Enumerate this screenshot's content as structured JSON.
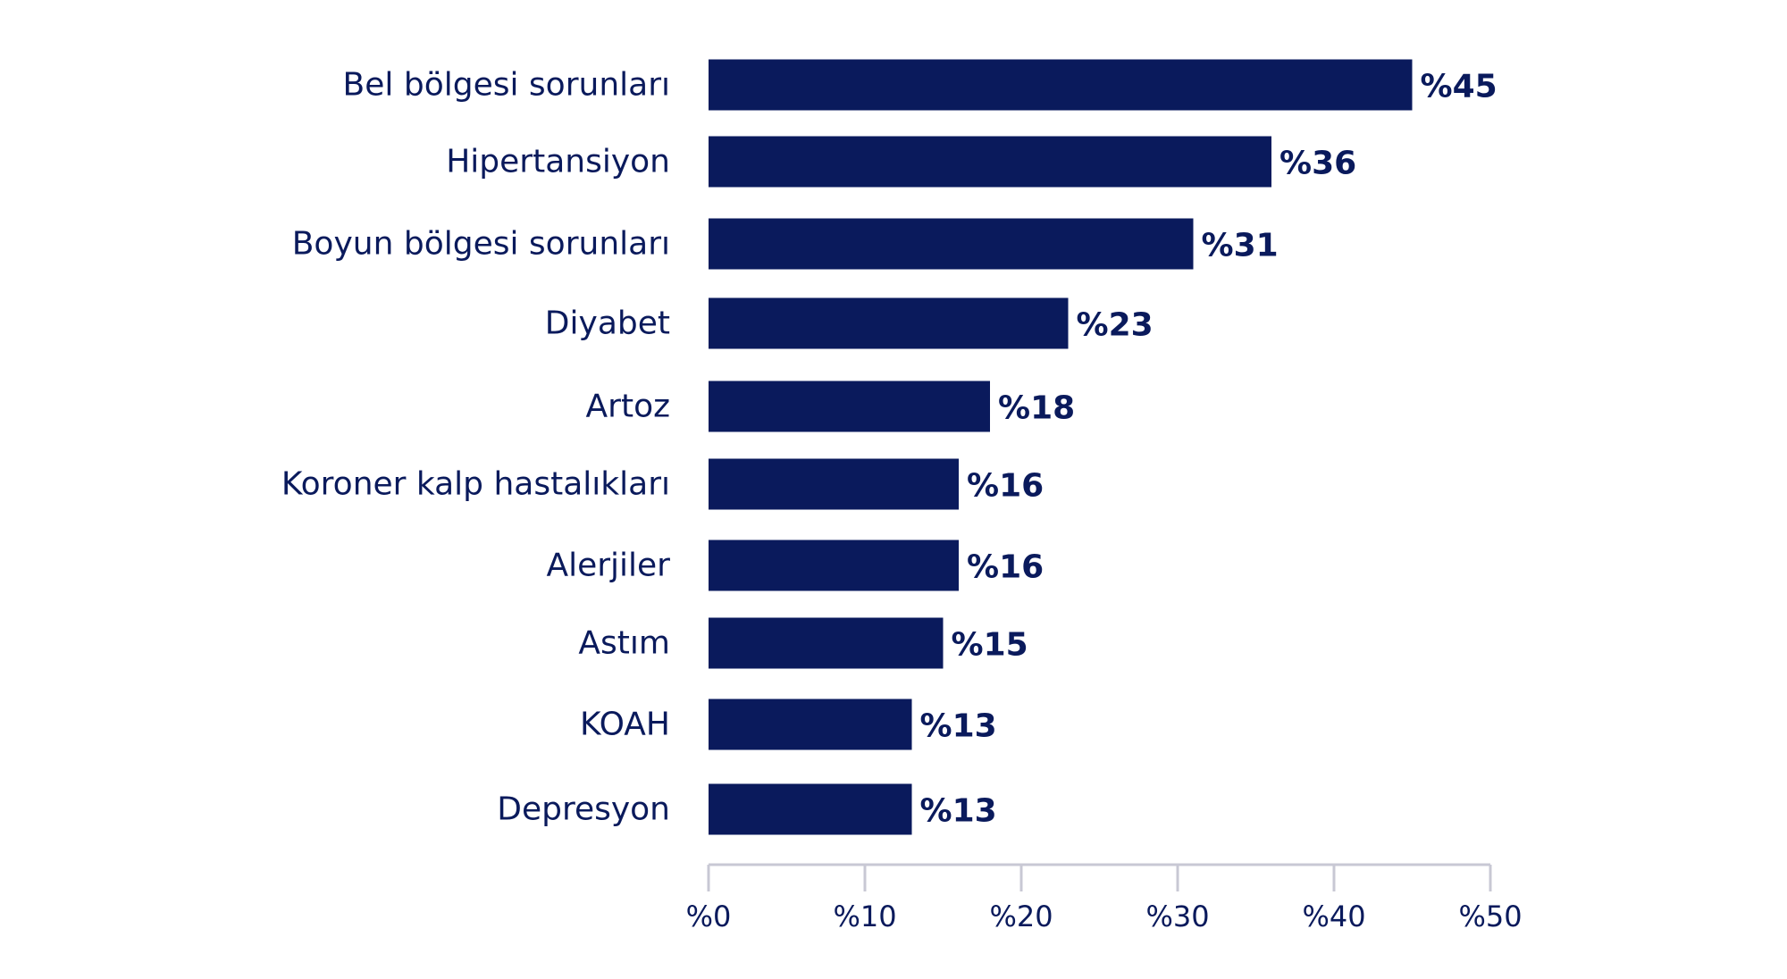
{
  "chart_data": {
    "type": "bar",
    "orientation": "horizontal",
    "title": "",
    "xlabel": "",
    "ylabel": "",
    "categories": [
      "Bel bölgesi sorunları",
      "Hipertansiyon",
      "Boyun bölgesi sorunları",
      "Diyabet",
      "Artoz",
      "Koroner kalp hastalıkları",
      "Alerjiler",
      "Astım",
      "KOAH",
      "Depresyon"
    ],
    "values": [
      45,
      36,
      31,
      23,
      18,
      16,
      16,
      15,
      13,
      13
    ],
    "value_labels": [
      "%45",
      "%36",
      "%31",
      "%23",
      "%18",
      "%16",
      "%16",
      "%15",
      "%13",
      "%13"
    ],
    "xlim": [
      0,
      50
    ],
    "ticks": [
      0,
      10,
      20,
      30,
      40,
      50
    ],
    "tick_labels": [
      "%0",
      "%10",
      "%20",
      "%30",
      "%40",
      "%50"
    ],
    "grid": false,
    "legend": "none",
    "colors": {
      "bar": "#0a1a5c",
      "text": "#0a1a5c",
      "axis": "#c8c8d4"
    }
  }
}
